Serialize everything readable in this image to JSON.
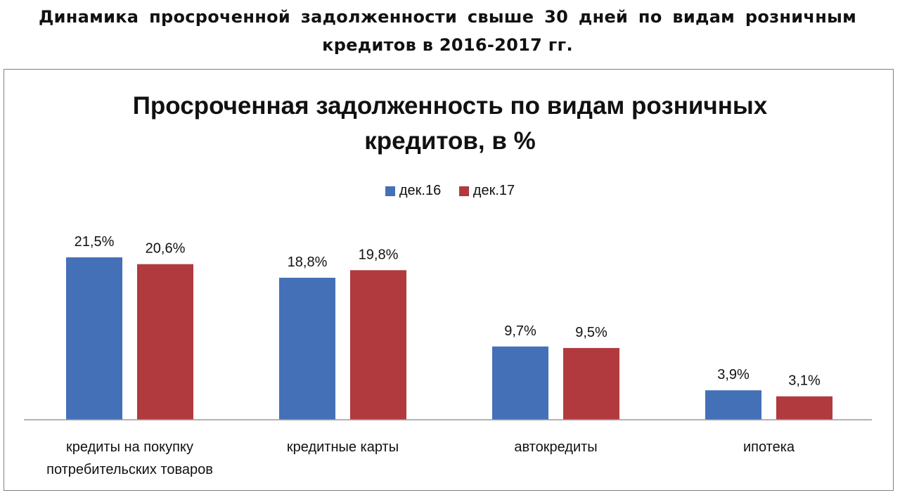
{
  "document": {
    "heading": "Динамика просроченной задолженности свыше 30 дней по видам розничным кредитов в 2016-2017 гг."
  },
  "chart_data": {
    "type": "bar",
    "title_line1": "Просроченная  задолженность по видам розничных",
    "title_line2": "кредитов, в %",
    "categories": [
      [
        "кредиты  на покупку",
        "потребительских товаров"
      ],
      [
        "кредитные  карты"
      ],
      [
        "автокредиты"
      ],
      [
        "ипотека"
      ]
    ],
    "series": [
      {
        "name": "дек.16",
        "color": "#4470b8",
        "values": [
          21.5,
          18.8,
          9.7,
          3.9
        ],
        "labels": [
          "21,5%",
          "18,8%",
          "9,7%",
          "3,9%"
        ]
      },
      {
        "name": "дек.17",
        "color": "#b03a3e",
        "values": [
          20.6,
          19.8,
          9.5,
          3.1
        ],
        "labels": [
          "20,6%",
          "19,8%",
          "9,5%",
          "3,1%"
        ]
      }
    ],
    "ylim": [
      0,
      21.5
    ],
    "grid": false,
    "legend": "top-center"
  }
}
